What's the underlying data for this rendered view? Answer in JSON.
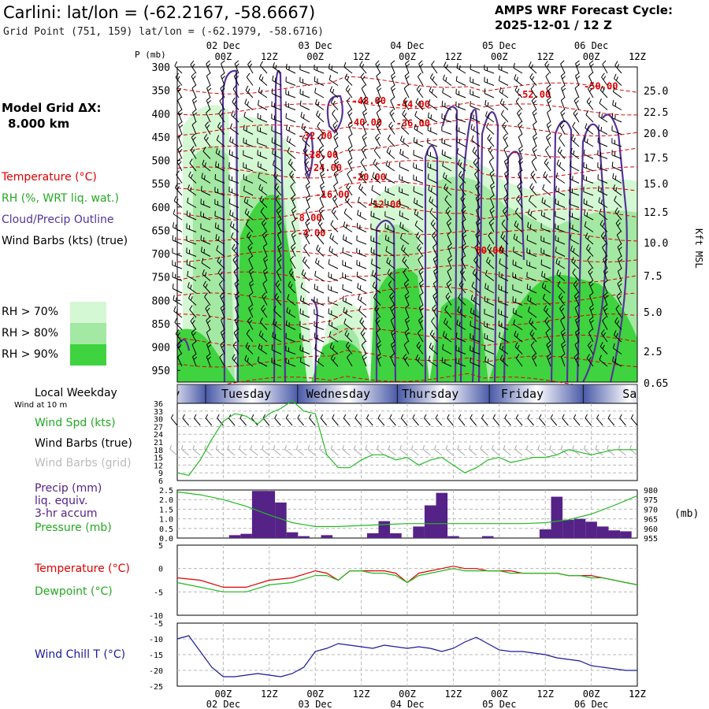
{
  "header": {
    "station_title": "Carlini:  lat/lon = (-62.2167, -58.6667)",
    "grid_point": "Grid Point (751, 159) lat/lon = (-62.1979, -58.6716)",
    "cycle_label": "AMPS WRF Forecast Cycle:",
    "cycle_value": "2025-12-01 / 12  Z"
  },
  "model_grid": {
    "label": "Model Grid ΔX:",
    "value": "8.000 km"
  },
  "legend": {
    "temperature": "Temperature (°C)",
    "rh": "RH (%, WRT liq. wat.)",
    "cloud": "Cloud/Precip Outline",
    "wind": "Wind Barbs (kts) (true)",
    "rh_levels": [
      {
        "label": "RH > 70%",
        "color": "#d4f7d4"
      },
      {
        "label": "RH > 80%",
        "color": "#a3e8a3"
      },
      {
        "label": "RH > 90%",
        "color": "#3fd33f"
      }
    ]
  },
  "time_axis": {
    "top_dates": [
      "02 Dec",
      "03 Dec",
      "04 Dec",
      "05 Dec",
      "06 Dec"
    ],
    "hours": [
      "00Z",
      "12Z",
      "00Z",
      "12Z",
      "00Z",
      "12Z",
      "00Z",
      "12Z",
      "00Z",
      "12Z"
    ],
    "hours_offset": 12
  },
  "colors": {
    "temp": "#e00000",
    "rh": "#22bb22",
    "cloud": "#553399",
    "dew": "#22bb22",
    "precip": "#552288",
    "chill": "#1a1a99",
    "grid": "#b8b8b8",
    "weekday": "#4a5aa8"
  },
  "chart_data": [
    {
      "type": "heatmap",
      "title": "Vertical cross-section",
      "ylabel": "P (mb)",
      "y2label": "Kft MSL",
      "yticks": [
        "300",
        "350",
        "400",
        "450",
        "500",
        "550",
        "600",
        "650",
        "700",
        "750",
        "800",
        "850",
        "900",
        "950"
      ],
      "y2ticks": [
        "25.0",
        "22.5",
        "20.0",
        "17.5",
        "15.0",
        "12.5",
        "10.0",
        "7.5",
        "5.0",
        "2.5",
        "0.65"
      ],
      "ylim": [
        300,
        975
      ],
      "x_hours": [
        0,
        120
      ],
      "temp_labels": [
        {
          "t": -50.0,
          "text": "-50.00",
          "h": 110.5,
          "p": 348
        },
        {
          "t": -52.0,
          "text": "-52.00",
          "h": 93,
          "p": 366
        },
        {
          "t": -48.0,
          "text": "-48.00",
          "h": 50,
          "p": 379
        },
        {
          "t": -44.0,
          "text": "-44.00",
          "h": 61.5,
          "p": 387
        },
        {
          "t": -40.0,
          "text": "-40.00",
          "h": 49,
          "p": 426
        },
        {
          "t": -36.0,
          "text": "-36.00",
          "h": 61.5,
          "p": 427
        },
        {
          "t": -32.0,
          "text": "-32.00",
          "h": 36,
          "p": 454
        },
        {
          "t": -28.0,
          "text": "-28.00",
          "h": 37.5,
          "p": 495
        },
        {
          "t": -24.0,
          "text": "-24.00",
          "h": 38.5,
          "p": 523
        },
        {
          "t": -20.0,
          "text": "-20.00",
          "h": 50,
          "p": 543
        },
        {
          "t": -16.0,
          "text": "-16.00",
          "h": 40.5,
          "p": 580
        },
        {
          "t": -12.0,
          "text": "-12.00",
          "h": 54,
          "p": 601
        },
        {
          "t": -8.0,
          "text": "-8.00",
          "h": 34,
          "p": 630
        },
        {
          "t": -4.0,
          "text": "-4.00",
          "h": 35,
          "p": 663
        },
        {
          "t": 0.0,
          "text": "00.00",
          "h": 81.5,
          "p": 700
        }
      ]
    },
    {
      "type": "line",
      "title": "Wind speed at 10 m",
      "label_top": "Local Weekday",
      "label_sub": "Wind at 10 m",
      "weekdays": [
        {
          "label": "nday",
          "hour": -3
        },
        {
          "label": "Tuesday",
          "hour": 18
        },
        {
          "label": "Wednesday",
          "hour": 42
        },
        {
          "label": "Thursday",
          "hour": 66
        },
        {
          "label": "Friday",
          "hour": 90
        },
        {
          "label": "Sa",
          "hour": 118
        }
      ],
      "series_label": "Wind Spd (kts)",
      "barbs_true_label": "Wind Barbs (true)",
      "barbs_grid_label": "Wind Barbs (grid)",
      "yticks": [
        "36",
        "33",
        "30",
        "27",
        "24",
        "21",
        "18",
        "15",
        "12",
        "9",
        "6"
      ],
      "ylim": [
        6,
        36
      ],
      "hours": [
        0,
        3,
        6,
        9,
        12,
        15,
        18,
        21,
        24,
        27,
        30,
        33,
        36,
        39,
        42,
        45,
        48,
        51,
        54,
        57,
        60,
        63,
        66,
        69,
        72,
        75,
        78,
        81,
        84,
        87,
        90,
        93,
        96,
        99,
        102,
        105,
        108,
        111,
        114,
        117,
        120
      ],
      "values": [
        9,
        8,
        14,
        22,
        29,
        32,
        31,
        28,
        32,
        34,
        37,
        33,
        32,
        16,
        11,
        11,
        14,
        16,
        16,
        14,
        15,
        12,
        14,
        15,
        12,
        9,
        11,
        14,
        15,
        13,
        14,
        15,
        15,
        16,
        18,
        17,
        16,
        17,
        18,
        18,
        18
      ]
    },
    {
      "type": "bar",
      "title": "Precip 3-hr accum and pressure",
      "label_precip": "Precip (mm)",
      "label_liq": "liq. equiv.",
      "label_accum": "3-hr accum",
      "label_pressure": "Pressure (mb)",
      "yticks": [
        "2.5",
        "2.0",
        "1.5",
        "1.0",
        "0.5",
        "0.0"
      ],
      "y2ticks": [
        "980",
        "975",
        "970",
        "965",
        "960",
        "955"
      ],
      "y2label": "(mb)",
      "ylim": [
        0,
        2.5
      ],
      "y2lim": [
        955,
        980
      ],
      "bins": [
        {
          "h": 15,
          "v": 0.15
        },
        {
          "h": 18,
          "v": 0.22
        },
        {
          "h": 21,
          "v": 2.45
        },
        {
          "h": 24,
          "v": 2.45
        },
        {
          "h": 27,
          "v": 1.85
        },
        {
          "h": 30,
          "v": 0.3
        },
        {
          "h": 33,
          "v": 0.1
        },
        {
          "h": 39,
          "v": 0.15
        },
        {
          "h": 51,
          "v": 0.25
        },
        {
          "h": 54,
          "v": 0.88
        },
        {
          "h": 57,
          "v": 0.25
        },
        {
          "h": 63,
          "v": 0.6
        },
        {
          "h": 66,
          "v": 1.7
        },
        {
          "h": 69,
          "v": 2.35
        },
        {
          "h": 72,
          "v": 0.1
        },
        {
          "h": 81,
          "v": 0.1
        },
        {
          "h": 96,
          "v": 0.45
        },
        {
          "h": 99,
          "v": 2.15
        },
        {
          "h": 102,
          "v": 0.95
        },
        {
          "h": 105,
          "v": 1.0
        },
        {
          "h": 108,
          "v": 0.85
        },
        {
          "h": 111,
          "v": 0.6
        },
        {
          "h": 114,
          "v": 0.4
        },
        {
          "h": 117,
          "v": 0.35
        }
      ],
      "pressure_hours": [
        0,
        6,
        12,
        18,
        24,
        30,
        36,
        42,
        48,
        54,
        60,
        66,
        72,
        78,
        84,
        90,
        96,
        102,
        108,
        114,
        120
      ],
      "pressure": [
        979,
        977.5,
        975,
        971.5,
        967,
        963,
        961,
        961,
        961.5,
        962,
        962.5,
        962.5,
        962.5,
        962.5,
        962.5,
        962.5,
        963,
        964.5,
        967.5,
        972,
        977
      ]
    },
    {
      "type": "line",
      "title": "Temperature and dewpoint",
      "label_temp": "Temperature (°C)",
      "label_dew": "Dewpoint (°C)",
      "yticks": [
        "5",
        "0",
        "-5",
        "-10"
      ],
      "ylim": [
        -10,
        5
      ],
      "hours": [
        0,
        6,
        12,
        18,
        24,
        30,
        36,
        39,
        42,
        45,
        48,
        51,
        54,
        57,
        60,
        63,
        66,
        69,
        72,
        75,
        78,
        81,
        84,
        87,
        90,
        93,
        96,
        99,
        102,
        105,
        108,
        111,
        114,
        117,
        120
      ],
      "temp": [
        -2,
        -2.5,
        -4,
        -4,
        -2.5,
        -2,
        -0.5,
        -1,
        -2.5,
        -0.5,
        -0.5,
        -0.5,
        -0.5,
        -1,
        -3,
        -1,
        -0.5,
        0,
        0.5,
        0,
        0,
        -0.5,
        -0.5,
        -0.5,
        -1,
        -1,
        -1,
        -1,
        -1.5,
        -1.5,
        -1.5,
        -2,
        -2.5,
        -3,
        -3.5
      ],
      "dew": [
        -3,
        -4,
        -5,
        -5,
        -3.5,
        -3,
        -1.5,
        -1.5,
        -2.5,
        -0.5,
        -0.5,
        -1,
        -1,
        -1.5,
        -3,
        -1.5,
        -1,
        -0.5,
        0,
        -0.5,
        -0.5,
        -0.5,
        -0.5,
        -1,
        -1,
        -1,
        -1,
        -1,
        -1.5,
        -1.5,
        -2,
        -2,
        -2.5,
        -3,
        -3.5
      ]
    },
    {
      "type": "line",
      "title": "Wind chill",
      "label": "Wind Chill T (°C)",
      "yticks": [
        "-5",
        "-10",
        "-15",
        "-20",
        "-25"
      ],
      "ylim": [
        -25,
        -5
      ],
      "hours": [
        0,
        3,
        6,
        9,
        12,
        15,
        18,
        21,
        24,
        27,
        30,
        33,
        36,
        39,
        42,
        45,
        48,
        51,
        54,
        57,
        60,
        63,
        66,
        69,
        72,
        75,
        78,
        81,
        84,
        87,
        90,
        93,
        96,
        99,
        102,
        105,
        108,
        111,
        114,
        117,
        120
      ],
      "values": [
        -10,
        -9,
        -14,
        -19,
        -22,
        -22,
        -21.5,
        -21,
        -21.5,
        -22,
        -21,
        -19,
        -14,
        -13,
        -11.5,
        -12,
        -12.5,
        -13,
        -12,
        -12.5,
        -13,
        -12.5,
        -13,
        -14,
        -13,
        -11,
        -9.5,
        -11.5,
        -13.5,
        -14,
        -14,
        -14.5,
        -15,
        -16,
        -16.5,
        -17,
        -18.5,
        -19,
        -19.5,
        -20,
        -20
      ]
    }
  ]
}
